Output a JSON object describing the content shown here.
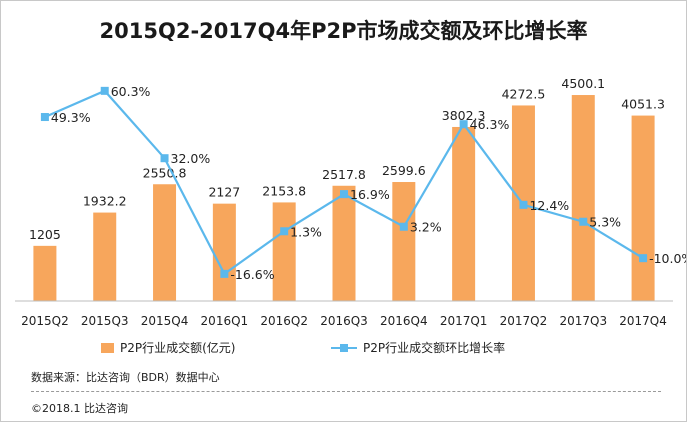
{
  "chart_data": {
    "type": "bar",
    "title": "2015Q2-2017Q4年P2P市场成交额及环比增长率",
    "categories": [
      "2015Q2",
      "2015Q3",
      "2015Q4",
      "2016Q1",
      "2016Q2",
      "2016Q3",
      "2016Q4",
      "2017Q1",
      "2017Q2",
      "2017Q3",
      "2017Q4"
    ],
    "series": [
      {
        "name": "P2P行业成交额(亿元)",
        "type": "bar",
        "values": [
          1205,
          1932.2,
          2550.8,
          2127,
          2153.8,
          2517.8,
          2599.6,
          3802.3,
          4272.5,
          4500.1,
          4051.3
        ],
        "labels": [
          "1205",
          "1932.2",
          "2550.8",
          "2127",
          "2153.8",
          "2517.8",
          "2599.6",
          "3802.3",
          "4272.5",
          "4500.1",
          "4051.3"
        ],
        "color": "#f7a65c"
      },
      {
        "name": "P2P行业成交额环比增长率",
        "type": "line",
        "values": [
          49.3,
          60.3,
          32.0,
          -16.6,
          1.3,
          16.9,
          3.2,
          46.3,
          12.4,
          5.3,
          -10.0
        ],
        "labels": [
          "49.3%",
          "60.3%",
          "32.0%",
          "-16.6%",
          "1.3%",
          "16.9%",
          "3.2%",
          "46.3%",
          "12.4%",
          "5.3%",
          "-10.0%"
        ],
        "color": "#5bb8ec"
      }
    ],
    "ylim": [
      0,
      5200
    ],
    "y2lim": [
      -28,
      72
    ],
    "legend": "bottom",
    "grid": false
  },
  "footer": {
    "source": "数据来源：比达咨询（BDR）数据中心",
    "copyright": "©2018.1  比达咨询"
  }
}
